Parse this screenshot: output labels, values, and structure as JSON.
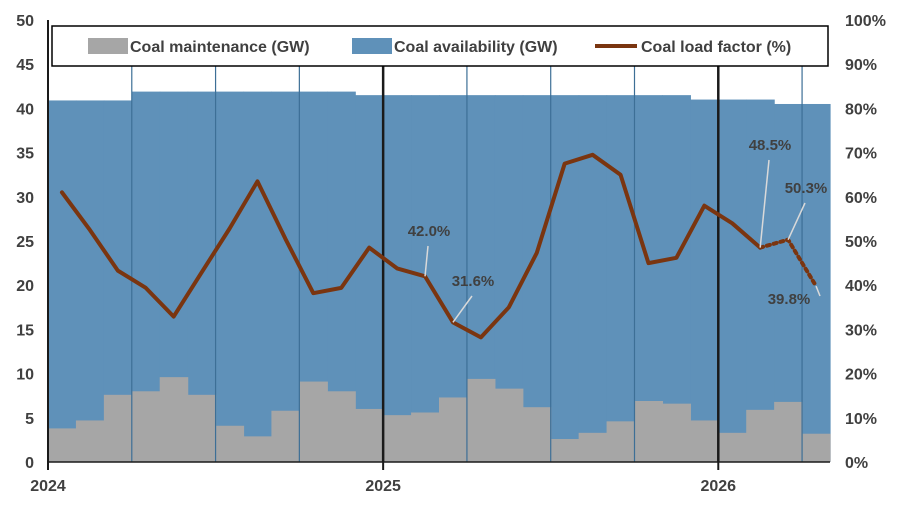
{
  "chart_data": {
    "type": "area",
    "x_labels": [
      "2024",
      "2025",
      "2026"
    ],
    "y_left": {
      "min": 0,
      "max": 50,
      "ticks": [
        "0",
        "5",
        "10",
        "15",
        "20",
        "25",
        "30",
        "35",
        "40",
        "45",
        "50"
      ]
    },
    "y_right": {
      "min": 0,
      "max": 100,
      "ticks": [
        "0%",
        "10%",
        "20%",
        "30%",
        "40%",
        "50%",
        "60%",
        "70%",
        "80%",
        "90%",
        "100%"
      ]
    },
    "months": [
      "2024-01",
      "2024-02",
      "2024-03",
      "2024-04",
      "2024-05",
      "2024-06",
      "2024-07",
      "2024-08",
      "2024-09",
      "2024-10",
      "2024-11",
      "2024-12",
      "2025-01",
      "2025-02",
      "2025-03",
      "2025-04",
      "2025-05",
      "2025-06",
      "2025-07",
      "2025-08",
      "2025-09",
      "2025-10",
      "2025-11",
      "2025-12",
      "2026-01",
      "2026-02",
      "2026-03",
      "2026-04"
    ],
    "series": [
      {
        "name": "Coal maintenance (GW)",
        "axis": "left",
        "kind": "step-area",
        "color": "#a6a6a6",
        "values": [
          3.8,
          4.7,
          7.6,
          8.0,
          9.6,
          7.6,
          4.1,
          2.9,
          5.8,
          9.1,
          8.0,
          6.0,
          5.3,
          5.6,
          7.3,
          9.4,
          8.3,
          6.2,
          2.6,
          3.3,
          4.6,
          6.9,
          6.6,
          4.7,
          3.3,
          5.9,
          6.8,
          3.2
        ]
      },
      {
        "name": "Coal availability (GW)",
        "axis": "left",
        "kind": "step-area",
        "color": "#5f91b9",
        "values": [
          40.9,
          40.9,
          40.9,
          41.9,
          41.9,
          41.9,
          41.9,
          41.9,
          41.9,
          41.9,
          41.9,
          41.5,
          41.5,
          41.5,
          41.5,
          41.5,
          41.5,
          41.5,
          41.5,
          41.5,
          41.5,
          41.5,
          41.5,
          41.0,
          41.0,
          41.0,
          40.5,
          40.5
        ]
      },
      {
        "name": "Coal load factor (%)",
        "axis": "right",
        "kind": "line",
        "color": "#7a3510",
        "x": [
          0,
          1,
          2,
          3,
          4,
          5,
          6,
          7,
          8,
          9,
          10,
          11,
          12,
          13,
          14,
          15,
          16,
          17,
          18,
          19,
          20,
          21,
          22,
          23,
          24,
          25,
          26,
          27
        ],
        "values": [
          61,
          52.5,
          43.3,
          39.4,
          32.9,
          42.9,
          52.8,
          63.5,
          50.5,
          38.2,
          39.4,
          48.5,
          43.8,
          42.0,
          31.6,
          28.2,
          35.0,
          47.3,
          67.5,
          69.5,
          65.0,
          45.0,
          46.2,
          58.0,
          54.0,
          48.5,
          50.3,
          39.8
        ],
        "solid_until_index": 25
      }
    ],
    "annotations": [
      {
        "text": "42.0%",
        "index": 13
      },
      {
        "text": "31.6%",
        "index": 14
      },
      {
        "text": "48.5%",
        "index": 25
      },
      {
        "text": "50.3%",
        "index": 26
      },
      {
        "text": "39.8%",
        "index": 27
      }
    ],
    "legend": {
      "placement": "top"
    }
  }
}
